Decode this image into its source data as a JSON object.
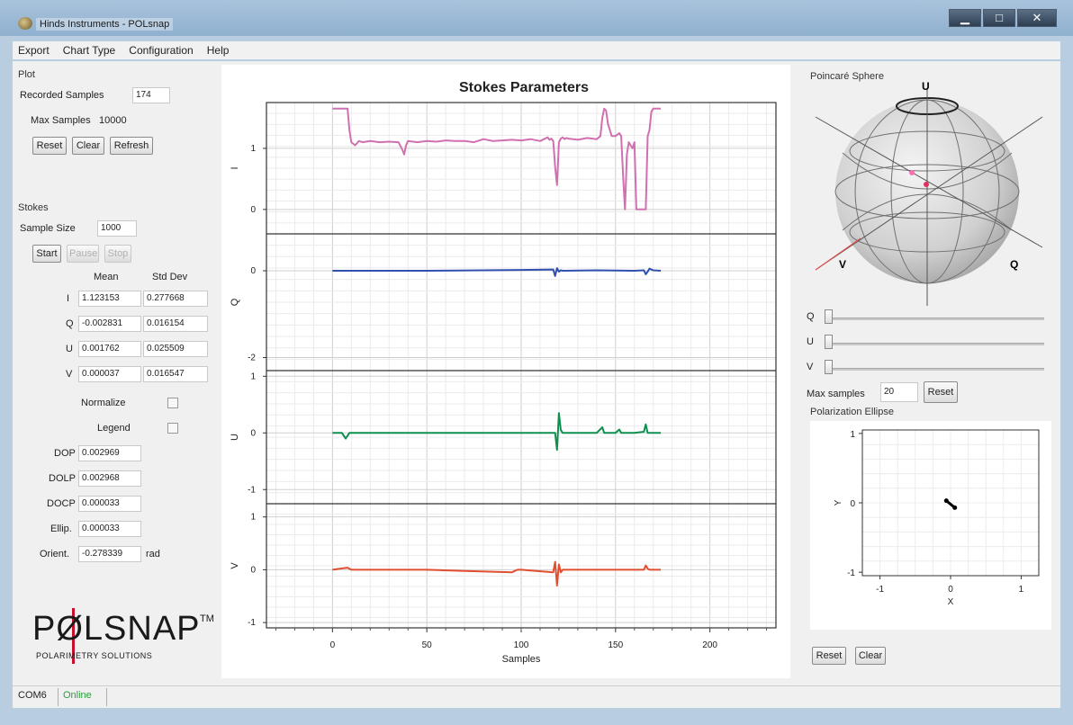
{
  "window": {
    "title": "Hinds Instruments - POLsnap",
    "minimize": "▁",
    "maximize": "□",
    "close": "✕"
  },
  "menu": [
    "Export",
    "Chart Type",
    "Configuration",
    "Help"
  ],
  "plot": {
    "group": "Plot",
    "recorded_label": "Recorded Samples",
    "recorded_value": "174",
    "max_label": "Max Samples",
    "max_value": "10000",
    "reset": "Reset",
    "clear": "Clear",
    "refresh": "Refresh"
  },
  "stokes": {
    "group": "Stokes",
    "sample_size_label": "Sample Size",
    "sample_size_value": "1000",
    "start": "Start",
    "pause": "Pause",
    "stop": "Stop",
    "mean_header": "Mean",
    "std_header": "Std Dev",
    "rows": [
      {
        "name": "I",
        "mean": "1.123153",
        "std": "0.277668"
      },
      {
        "name": "Q",
        "mean": "-0.002831",
        "std": "0.016154"
      },
      {
        "name": "U",
        "mean": "0.001762",
        "std": "0.025509"
      },
      {
        "name": "V",
        "mean": "0.000037",
        "std": "0.016547"
      }
    ],
    "normalize_label": "Normalize",
    "legend_label": "Legend",
    "dop_label": "DOP",
    "dop_value": "0.002969",
    "dolp_label": "DOLP",
    "dolp_value": "0.002968",
    "docp_label": "DOCP",
    "docp_value": "0.000033",
    "ellip_label": "Ellip.",
    "ellip_value": "0.000033",
    "orient_label": "Orient.",
    "orient_value": "-0.278339",
    "orient_unit": "rad"
  },
  "logo": {
    "main": "PØLSNAP",
    "tm": "TM",
    "sub": "POLARIMETRY SOLUTIONS"
  },
  "chart_data": [
    {
      "type": "line",
      "title": "Stokes Parameters",
      "xlabel": "Samples",
      "x_ticks": [
        "0",
        "50",
        "100",
        "150",
        "200"
      ],
      "xlim": [
        -35,
        235
      ],
      "subplots": [
        {
          "ylabel": "I",
          "yticks": [
            "1",
            "0"
          ],
          "ylim": [
            -0.4,
            1.75
          ],
          "color": "#d070b0",
          "x": [
            0,
            8,
            9,
            10,
            12,
            14,
            16,
            20,
            25,
            30,
            35,
            37,
            38,
            39,
            40,
            45,
            50,
            55,
            60,
            65,
            70,
            75,
            80,
            85,
            90,
            95,
            100,
            105,
            110,
            114,
            115,
            116,
            117,
            118,
            119,
            120,
            121,
            122,
            123,
            124,
            125,
            130,
            135,
            140,
            142,
            143,
            144,
            145,
            146,
            148,
            150,
            152,
            153,
            154,
            155,
            156,
            157,
            158,
            159,
            160,
            161,
            162,
            163,
            164,
            166,
            167,
            168,
            169,
            170,
            172,
            174
          ],
          "values": [
            1.65,
            1.65,
            1.3,
            1.1,
            1.05,
            1.12,
            1.1,
            1.12,
            1.1,
            1.11,
            1.1,
            0.98,
            0.9,
            1.05,
            1.12,
            1.1,
            1.12,
            1.11,
            1.13,
            1.12,
            1.12,
            1.1,
            1.15,
            1.12,
            1.13,
            1.14,
            1.13,
            1.15,
            1.12,
            1.18,
            1.14,
            1.16,
            1.12,
            0.7,
            0.4,
            1.1,
            1.16,
            1.18,
            1.15,
            1.17,
            1.16,
            1.14,
            1.17,
            1.15,
            1.2,
            1.5,
            1.65,
            1.62,
            1.4,
            1.2,
            1.2,
            1.25,
            1.2,
            0.55,
            0.0,
            0.9,
            1.1,
            1.05,
            1.0,
            1.1,
            0.0,
            0.0,
            0.0,
            0.0,
            0.0,
            1.2,
            1.3,
            1.6,
            1.65,
            1.65,
            1.65
          ]
        },
        {
          "ylabel": "Q",
          "yticks": [
            "0",
            "-2"
          ],
          "ylim": [
            -2.3,
            0.85
          ],
          "color": "#3050b0",
          "x": [
            0,
            50,
            100,
            117,
            118,
            119,
            120,
            121,
            122,
            140,
            160,
            165,
            166,
            167,
            168,
            170,
            174
          ],
          "values": [
            0.0,
            0.0,
            0.02,
            0.03,
            -0.12,
            0.06,
            -0.02,
            0.01,
            0.0,
            0.01,
            0.0,
            0.01,
            -0.08,
            -0.02,
            0.05,
            0.01,
            0.0
          ],
          "visible_line_end_x": 174
        },
        {
          "ylabel": "U",
          "yticks": [
            "1",
            "0",
            "-1"
          ],
          "ylim": [
            -1.25,
            1.1
          ],
          "color": "#109050",
          "x": [
            0,
            5,
            7,
            9,
            11,
            50,
            100,
            115,
            118,
            119,
            120,
            121,
            122,
            140,
            143,
            144,
            145,
            150,
            152,
            153,
            154,
            160,
            165,
            166,
            167,
            168,
            169,
            170,
            174
          ],
          "values": [
            0.0,
            0.0,
            -0.1,
            0.0,
            0.0,
            0.0,
            0.0,
            0.0,
            0.0,
            -0.3,
            0.35,
            0.05,
            0.0,
            0.0,
            0.1,
            0.0,
            0.0,
            0.0,
            0.06,
            0.0,
            0.0,
            0.0,
            0.02,
            0.15,
            0.0,
            0.0,
            0.0,
            0.0,
            0.0
          ]
        },
        {
          "ylabel": "V",
          "yticks": [
            "1",
            "0",
            "-1"
          ],
          "ylim": [
            -1.1,
            1.25
          ],
          "color": "#e05030",
          "x": [
            0,
            8,
            10,
            50,
            95,
            98,
            100,
            117,
            118,
            119,
            120,
            121,
            122,
            140,
            150,
            160,
            165,
            166,
            167,
            168,
            170,
            174
          ],
          "values": [
            0.0,
            0.04,
            0.0,
            0.0,
            -0.05,
            0.0,
            0.0,
            -0.05,
            0.15,
            -0.3,
            0.1,
            -0.05,
            0.0,
            0.0,
            0.0,
            0.0,
            0.0,
            0.08,
            0.02,
            0.0,
            0.0,
            0.0
          ]
        }
      ]
    },
    {
      "type": "scatter",
      "title": "Polarization Ellipse",
      "xlabel": "X",
      "ylabel": "Y",
      "xlim": [
        -1.25,
        1.25
      ],
      "ylim": [
        -1.05,
        1.05
      ],
      "x_ticks": [
        "-1",
        "0",
        "1"
      ],
      "y_ticks": [
        "1",
        "0",
        "-1"
      ],
      "points_x": [
        -0.06,
        0.06
      ],
      "points_y": [
        0.03,
        -0.07
      ]
    }
  ],
  "poincare": {
    "group": "Poincaré Sphere",
    "axis_u": "U",
    "axis_v": "V",
    "axis_q": "Q"
  },
  "sliders": {
    "q_label": "Q",
    "u_label": "U",
    "v_label": "V",
    "max_samples_label": "Max samples",
    "max_samples_value": "20",
    "reset": "Reset"
  },
  "ellipse": {
    "group": "Polarization Ellipse",
    "reset": "Reset",
    "clear": "Clear"
  },
  "status": {
    "port": "COM6",
    "state": "Online",
    "state_color": "#2a9d3a"
  }
}
